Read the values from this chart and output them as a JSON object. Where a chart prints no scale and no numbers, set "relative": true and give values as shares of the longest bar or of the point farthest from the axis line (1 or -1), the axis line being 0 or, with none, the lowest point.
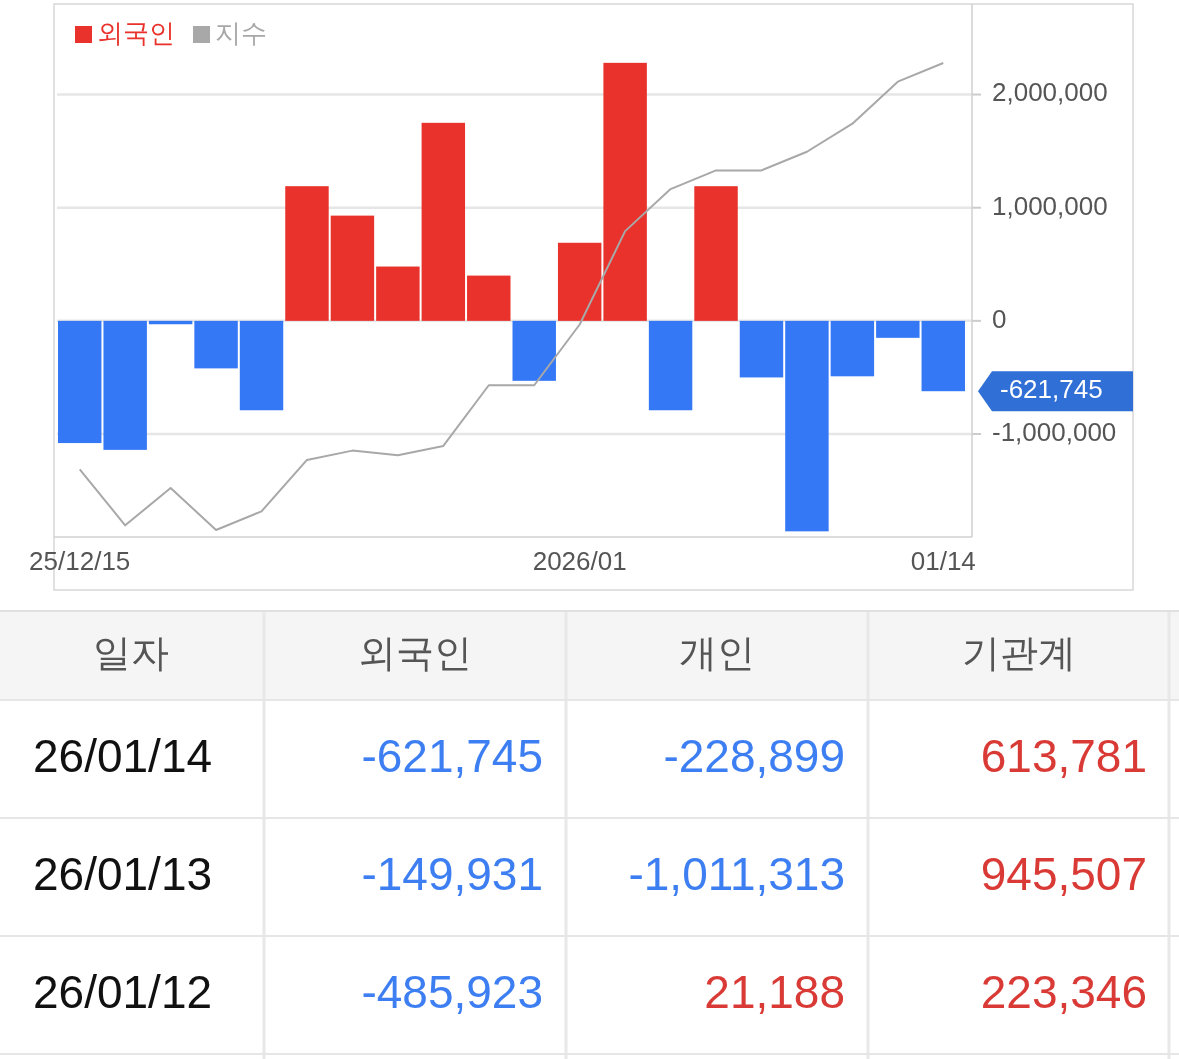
{
  "chart_data": [
    {
      "type": "bar",
      "categories": [
        "25/12/15",
        null,
        null,
        null,
        null,
        null,
        null,
        null,
        null,
        null,
        null,
        "2026/01",
        null,
        null,
        null,
        null,
        null,
        null,
        null,
        "01/14"
      ],
      "series": [
        {
          "name": "외국인",
          "color": "#e8322b",
          "colors": [
            "#3478f6",
            "#3478f6",
            "#3478f6",
            "#3478f6",
            "#3478f6",
            "#e8322b",
            "#e8322b",
            "#e8322b",
            "#e8322b",
            "#e8322b",
            "#3478f6",
            "#e8322b",
            "#e8322b",
            "#3478f6",
            "#e8322b",
            "#3478f6",
            "#3478f6",
            "#3478f6",
            "#3478f6",
            "#3478f6"
          ],
          "values": [
            -1080000,
            -1140000,
            -30000,
            -420000,
            -790000,
            1190000,
            930000,
            480000,
            1750000,
            400000,
            -530000,
            690000,
            2280000,
            -790000,
            1190000,
            -500000,
            -1860000,
            -490000,
            -150000,
            -621745
          ]
        }
      ],
      "ylim": [
        -1910000,
        2800000
      ],
      "yticks": [
        {
          "value": -1000000,
          "label": "-1,000,000"
        },
        {
          "value": 0,
          "label": "0"
        },
        {
          "value": 1000000,
          "label": "1,000,000"
        },
        {
          "value": 2000000,
          "label": "2,000,000"
        }
      ],
      "grid": "y",
      "legend": "top left",
      "annotations": [
        {
          "text": "-621,745",
          "x": "01/14",
          "y": -621745
        }
      ]
    },
    {
      "type": "line",
      "relative": true,
      "categories": [
        null,
        null,
        null,
        null,
        null,
        null,
        null,
        null,
        null,
        null,
        null,
        null,
        null,
        null,
        null,
        null,
        null,
        null,
        null,
        null
      ],
      "series": [
        {
          "name": "지수",
          "color": "#a8a8a8",
          "values": [
            0.13,
            0.01,
            0.09,
            0,
            0.04,
            0.15,
            0.17,
            0.16,
            0.18,
            0.31,
            0.31,
            0.44,
            0.64,
            0.73,
            0.77,
            0.77,
            0.81,
            0.87,
            0.96,
            1
          ]
        }
      ],
      "legend": "top left"
    },
    {
      "type": "other",
      "categories": [
        "일자",
        "외국인",
        "개인",
        "기관계"
      ],
      "annotations": [
        "26/01/14",
        "-621,745",
        "-228,899",
        "613,781",
        "26/01/13",
        "-149,931",
        "-1,011,313",
        "945,507",
        "26/01/12",
        "-485,923",
        "21,188",
        "223,346"
      ]
    }
  ]
}
